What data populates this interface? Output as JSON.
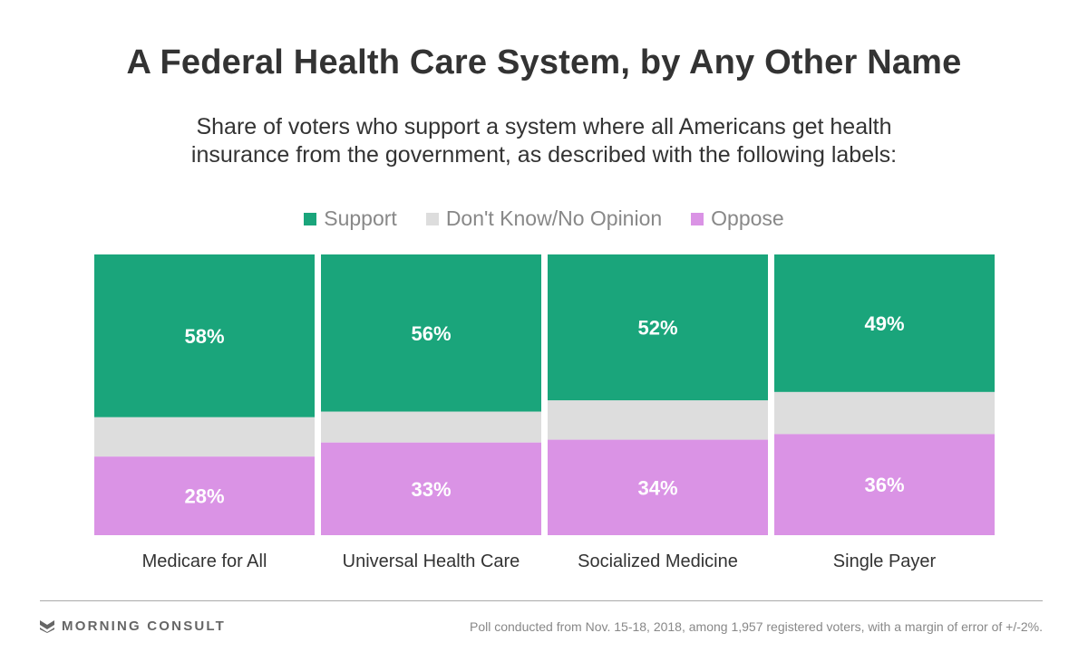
{
  "header": {
    "title": "A Federal Health Care System, by Any Other Name",
    "subtitle_line1": "Share of voters who support a system where all Americans get health",
    "subtitle_line2": "insurance from the government, as described with the following labels:"
  },
  "chart_data": {
    "type": "bar",
    "stacked": true,
    "normalized_percent": true,
    "legend_position": "top-center",
    "grid": false,
    "categories": [
      "Medicare for All",
      "Universal Health Care",
      "Socialized Medicine",
      "Single Payer"
    ],
    "series": [
      {
        "name": "Support",
        "values": [
          58,
          56,
          52,
          49
        ],
        "labels": [
          "58%",
          "56%",
          "52%",
          "49%"
        ],
        "color": "#1aa57b"
      },
      {
        "name": "Don't Know/No Opinion",
        "values": [
          14,
          11,
          14,
          15
        ],
        "labels": [
          "",
          "",
          "",
          ""
        ],
        "color": "#dddddd"
      },
      {
        "name": "Oppose",
        "values": [
          28,
          33,
          34,
          36
        ],
        "labels": [
          "28%",
          "33%",
          "34%",
          "36%"
        ],
        "color": "#da93e5"
      }
    ],
    "ylim": [
      0,
      100
    ]
  },
  "footer": {
    "brand": "MORNING CONSULT",
    "brand_icon": "morning-consult-logo-icon",
    "note": "Poll conducted from Nov. 15-18, 2018, among 1,957 registered voters, with a margin of error of +/-2%."
  }
}
